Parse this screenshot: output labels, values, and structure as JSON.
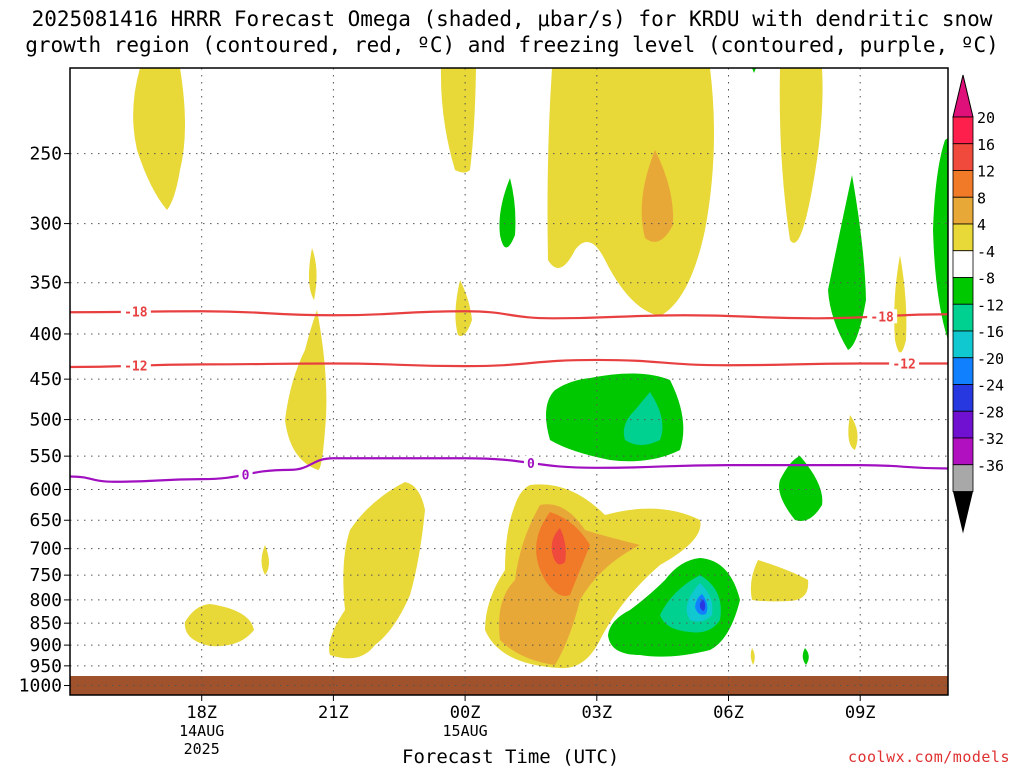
{
  "title_line1": "2025081416 HRRR Forecast Omega (shaded, μbar/s) for KRDU with dendritic snow",
  "title_line2": "growth region (contoured, red, ºC) and freezing level (contoured, purple, ºC)",
  "chart_data": {
    "type": "heatmap",
    "xlabel": "Forecast Time (UTC)",
    "ylabel": "",
    "x_range": [
      "2025-08-14T15:00Z",
      "2025-08-15T11:00Z"
    ],
    "x_ticks": [
      {
        "time": "2025-08-14T18:00Z",
        "label": "18Z",
        "sub": [
          "14AUG",
          "2025"
        ]
      },
      {
        "time": "2025-08-14T21:00Z",
        "label": "21Z",
        "sub": []
      },
      {
        "time": "2025-08-15T00:00Z",
        "label": "00Z",
        "sub": [
          "15AUG"
        ]
      },
      {
        "time": "2025-08-15T03:00Z",
        "label": "03Z",
        "sub": []
      },
      {
        "time": "2025-08-15T06:00Z",
        "label": "06Z",
        "sub": []
      },
      {
        "time": "2025-08-15T09:00Z",
        "label": "09Z",
        "sub": []
      }
    ],
    "y_axis": {
      "scale": "pressure (log)",
      "inverted": true,
      "range_hPa": [
        1025,
        200
      ]
    },
    "y_ticks": [
      250,
      300,
      350,
      400,
      450,
      500,
      550,
      600,
      650,
      700,
      750,
      800,
      850,
      900,
      950,
      1000
    ],
    "grid": true,
    "colorbar": {
      "placement": "right",
      "labels": [
        20,
        16,
        12,
        8,
        4,
        -4,
        -8,
        -12,
        -16,
        -20,
        -24,
        -28,
        -32,
        -36
      ],
      "colors": [
        "#ff1f4c",
        "#f04a3c",
        "#f07a28",
        "#e8a838",
        "#e8d838",
        "#ffffff",
        "#00c800",
        "#00d090",
        "#10c8d0",
        "#1080ff",
        "#2838e0",
        "#7010d0",
        "#b010c0",
        "#a8a8a8"
      ],
      "top_arrow_color": "#e0107a",
      "bottom_arrow_color": "#000000"
    },
    "contours": [
      {
        "label": "-18",
        "color": "#e84040",
        "times": [
          "2025-08-14T15:00Z",
          "2025-08-14T18:00Z",
          "2025-08-14T21:00Z",
          "2025-08-15T00:00Z",
          "2025-08-15T02:00Z",
          "2025-08-15T05:00Z",
          "2025-08-15T08:00Z",
          "2025-08-15T11:00Z"
        ],
        "pressure_hPa": [
          378,
          377,
          381,
          377,
          384,
          381,
          384,
          380
        ]
      },
      {
        "label": "-12",
        "color": "#e84040",
        "times": [
          "2025-08-14T15:00Z",
          "2025-08-14T18:00Z",
          "2025-08-14T21:00Z",
          "2025-08-15T00:00Z",
          "2025-08-15T03:00Z",
          "2025-08-15T06:00Z",
          "2025-08-15T09:00Z",
          "2025-08-15T11:00Z"
        ],
        "pressure_hPa": [
          436,
          433,
          432,
          435,
          428,
          434,
          432,
          432
        ]
      },
      {
        "label": "0",
        "color": "#a010c0",
        "times": [
          "2025-08-14T15:00Z",
          "2025-08-14T16:00Z",
          "2025-08-14T18:00Z",
          "2025-08-14T20:00Z",
          "2025-08-14T21:00Z",
          "2025-08-15T00:00Z",
          "2025-08-15T03:00Z",
          "2025-08-15T06:00Z",
          "2025-08-15T09:00Z",
          "2025-08-15T11:00Z"
        ],
        "pressure_hPa": [
          580,
          588,
          584,
          570,
          553,
          553,
          567,
          563,
          563,
          568
        ]
      }
    ],
    "omega_regions": [
      {
        "value": 4,
        "time_center": "2025-08-14T17:15Z",
        "pressure_center": 255
      },
      {
        "value": 4,
        "time_center": "2025-08-14T20:54Z",
        "pressure_center": 460
      },
      {
        "value": 4,
        "time_center": "2025-08-14T23:30Z",
        "pressure_center": 760
      },
      {
        "value": 4,
        "time_center": "2025-08-15T02:30Z",
        "pressure_center": 760
      },
      {
        "value": 8,
        "time_center": "2025-08-15T01:30Z",
        "pressure_center": 820
      },
      {
        "value": 12,
        "time_center": "2025-08-15T02:00Z",
        "pressure_center": 720
      },
      {
        "value": 20,
        "time_center": "2025-08-15T02:00Z",
        "pressure_center": 725
      },
      {
        "value": 8,
        "time_center": "2025-08-15T04:00Z",
        "pressure_center": 290
      },
      {
        "value": 4,
        "time_center": "2025-08-15T04:00Z",
        "pressure_center": 290
      },
      {
        "value": -8,
        "time_center": "2025-08-15T03:30Z",
        "pressure_center": 510
      },
      {
        "value": -12,
        "time_center": "2025-08-15T04:00Z",
        "pressure_center": 520
      },
      {
        "value": -8,
        "time_center": "2025-08-15T04:30Z",
        "pressure_center": 860
      },
      {
        "value": -12,
        "time_center": "2025-08-15T05:00Z",
        "pressure_center": 820
      },
      {
        "value": -20,
        "time_center": "2025-08-15T05:00Z",
        "pressure_center": 820
      },
      {
        "value": -8,
        "time_center": "2025-08-15T08:00Z",
        "pressure_center": 350
      },
      {
        "value": -8,
        "time_center": "2025-08-15T07:00Z",
        "pressure_center": 620
      },
      {
        "value": 4,
        "time_center": "2025-08-15T08:36Z",
        "pressure_center": 300
      }
    ]
  },
  "credit": "coolwx.com/models"
}
